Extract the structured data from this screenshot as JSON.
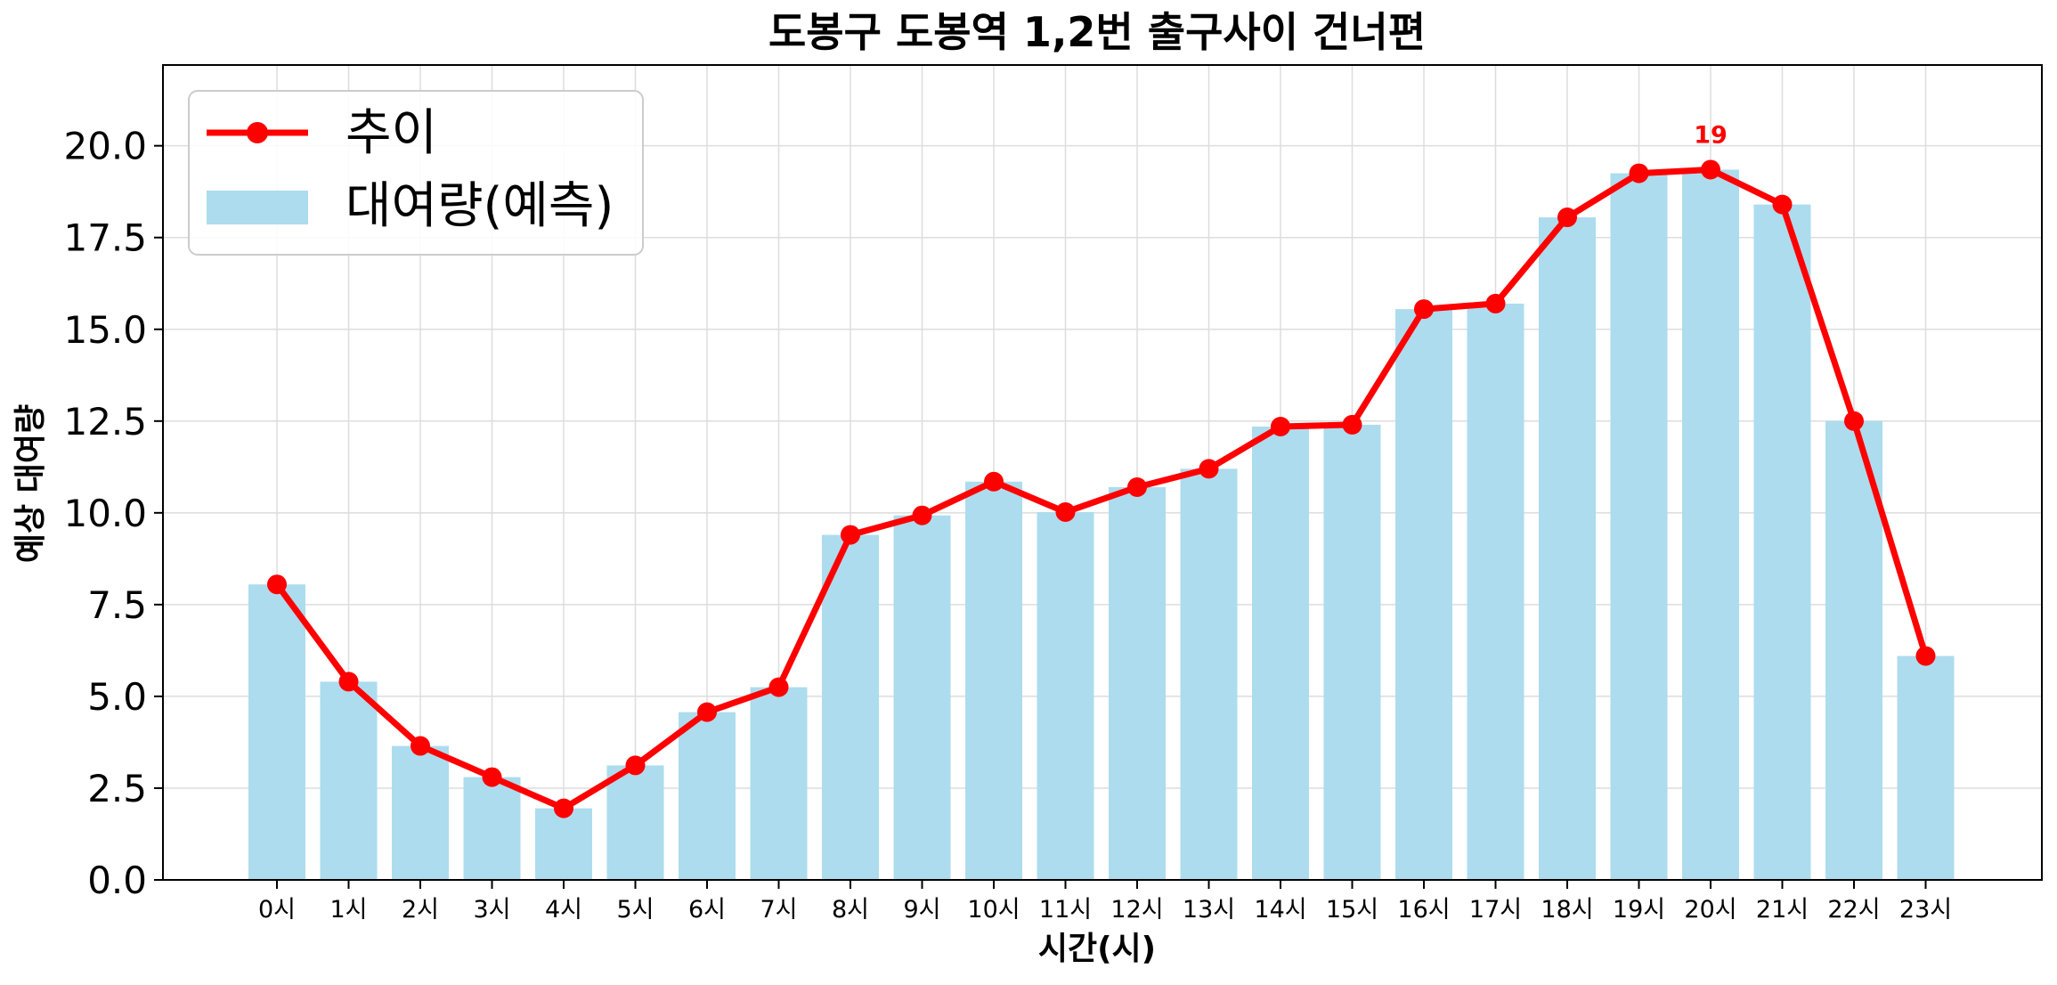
{
  "colors": {
    "bar": "#ADDCEE",
    "line": "#FF0000",
    "grid": "#DDDDDD",
    "axis": "#000000"
  },
  "chart_data": {
    "type": "bar",
    "title": "도봉구 도봉역 1,2번 출구사이 건너편",
    "xlabel": "시간(시)",
    "ylabel": "예상 대여량",
    "categories": [
      "0시",
      "1시",
      "2시",
      "3시",
      "4시",
      "5시",
      "6시",
      "7시",
      "8시",
      "9시",
      "10시",
      "11시",
      "12시",
      "13시",
      "14시",
      "15시",
      "16시",
      "17시",
      "18시",
      "19시",
      "20시",
      "21시",
      "22시",
      "23시"
    ],
    "yticks": [
      "0.0",
      "2.5",
      "5.0",
      "7.5",
      "10.0",
      "12.5",
      "15.0",
      "17.5",
      "20.0"
    ],
    "ylim": [
      0,
      22.2
    ],
    "grid": true,
    "legend": {
      "placement": "top-left",
      "entries": [
        {
          "label": "추이",
          "kind": "line-marker"
        },
        {
          "label": "대여량(예측)",
          "kind": "bar"
        }
      ]
    },
    "series": [
      {
        "name": "대여량(예측)",
        "kind": "bar",
        "values": [
          8.05,
          5.4,
          3.65,
          2.8,
          1.95,
          3.12,
          4.57,
          5.25,
          9.4,
          9.93,
          10.85,
          10.02,
          10.7,
          11.2,
          12.35,
          12.4,
          15.55,
          15.7,
          18.05,
          19.25,
          19.35,
          18.4,
          12.5,
          6.1
        ]
      },
      {
        "name": "추이",
        "kind": "line",
        "values": [
          8.05,
          5.4,
          3.65,
          2.8,
          1.95,
          3.12,
          4.57,
          5.25,
          9.4,
          9.93,
          10.85,
          10.02,
          10.7,
          11.2,
          12.35,
          12.4,
          15.55,
          15.7,
          18.05,
          19.25,
          19.35,
          18.4,
          12.5,
          6.1
        ]
      }
    ],
    "annotations": [
      {
        "text": "19",
        "category": "20시",
        "value": 19.35
      }
    ]
  }
}
